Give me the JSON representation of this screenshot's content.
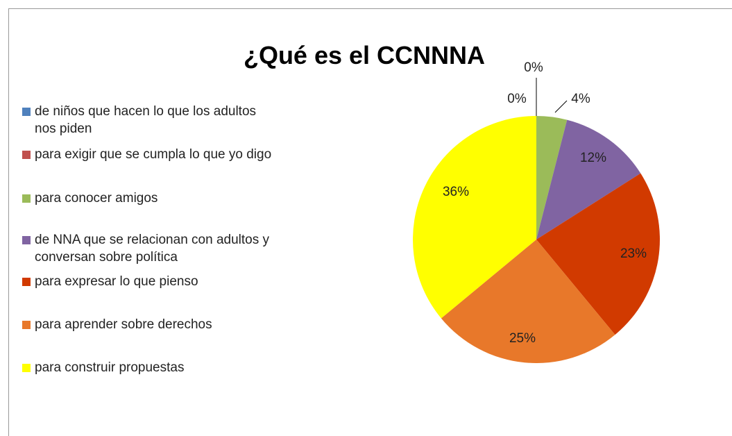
{
  "chart_data": {
    "type": "pie",
    "title": "¿Qué es el CCNNNA",
    "categories": [
      "de niños que hacen lo que los adultos nos piden",
      "para exigir que se cumpla lo que yo digo",
      "para conocer amigos",
      "de NNA que se relacionan con adultos y conversan sobre política",
      "para expresar lo que pienso",
      "para aprender sobre derechos",
      "para construir propuestas"
    ],
    "values": [
      0,
      0,
      4,
      12,
      23,
      25,
      36
    ],
    "value_labels": [
      "0%",
      "0%",
      "4%",
      "12%",
      "23%",
      "25%",
      "36%"
    ],
    "colors": [
      "#4f81bd",
      "#c0504d",
      "#9bbb59",
      "#8064a2",
      "#d13a00",
      "#e8782a",
      "#ffff00"
    ],
    "legend": "left"
  }
}
